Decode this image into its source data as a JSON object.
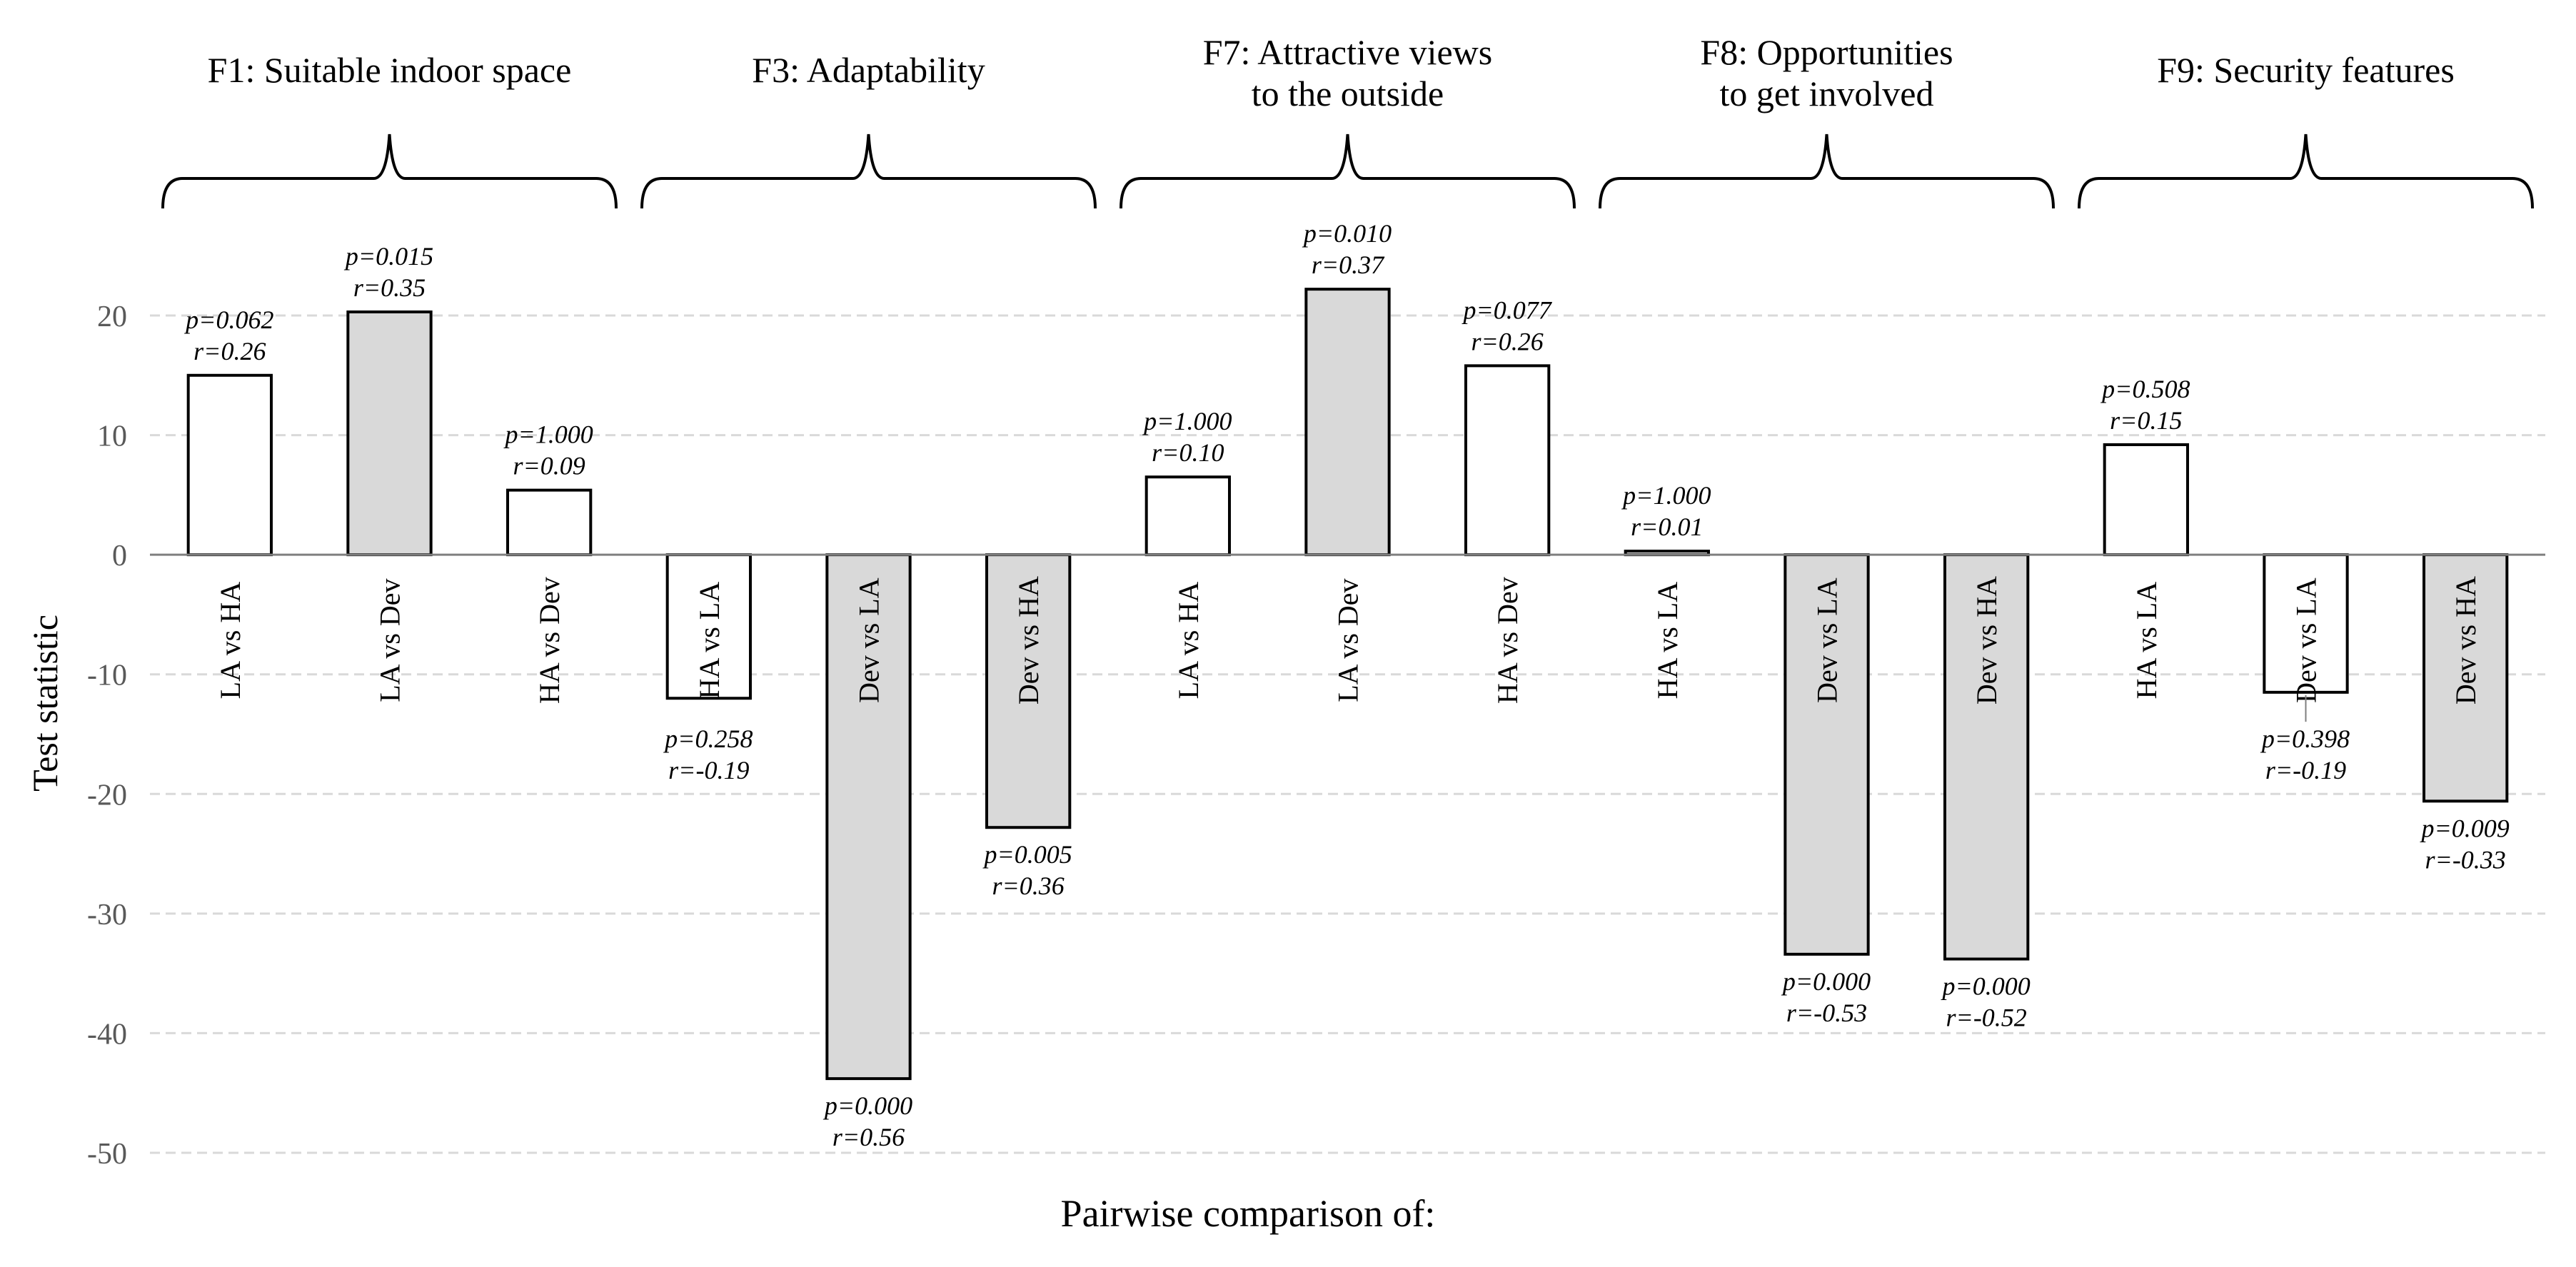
{
  "chart_data": {
    "type": "bar",
    "title": "",
    "xlabel": "Pairwise comparison of:",
    "ylabel": "Test statistic",
    "ylim": [
      -50,
      20
    ],
    "yticks": [
      20,
      10,
      0,
      -10,
      -20,
      -30,
      -40,
      -50
    ],
    "grid": true,
    "legend": "none",
    "colors": {
      "significant": "#d9d9d9",
      "not_significant": "#ffffff",
      "edge": "#000000",
      "grid": "#d9d9d9",
      "axis_text": "#595959"
    },
    "groups": [
      {
        "label": "F1: Suitable indoor space",
        "comparisons": [
          {
            "label": "LA vs HA",
            "value": 15.0,
            "p": "p=0.062",
            "r": "r=0.26",
            "significant": false
          },
          {
            "label": "LA vs Dev",
            "value": 20.3,
            "p": "p=0.015",
            "r": "r=0.35",
            "significant": true
          },
          {
            "label": "HA vs Dev",
            "value": 5.4,
            "p": "p=1.000",
            "r": "r=0.09",
            "significant": false
          }
        ]
      },
      {
        "label": "F3: Adaptability",
        "comparisons": [
          {
            "label": "HA vs LA",
            "value": -12.0,
            "p": "p=0.258",
            "r": "r=-0.19",
            "significant": false
          },
          {
            "label": "Dev vs LA",
            "value": -43.8,
            "p": "p=0.000",
            "r": "r=0.56",
            "significant": true
          },
          {
            "label": "Dev vs HA",
            "value": -22.8,
            "p": "p=0.005",
            "r": "r=0.36",
            "significant": true
          }
        ]
      },
      {
        "label": "F7: Attractive views to the outside",
        "comparisons": [
          {
            "label": "LA vs HA",
            "value": 6.5,
            "p": "p=1.000",
            "r": "r=0.10",
            "significant": false
          },
          {
            "label": "LA vs Dev",
            "value": 22.2,
            "p": "p=0.010",
            "r": "r=0.37",
            "significant": true
          },
          {
            "label": "HA vs Dev",
            "value": 15.8,
            "p": "p=0.077",
            "r": "r=0.26",
            "significant": false
          }
        ]
      },
      {
        "label": "F8: Opportunities to get involved",
        "comparisons": [
          {
            "label": "HA vs LA",
            "value": 0.3,
            "p": "p=1.000",
            "r": "r=0.01",
            "significant": false
          },
          {
            "label": "Dev vs LA",
            "value": -33.4,
            "p": "p=0.000",
            "r": "r=-0.53",
            "significant": true
          },
          {
            "label": "Dev vs HA",
            "value": -33.8,
            "p": "p=0.000",
            "r": "r=-0.52",
            "significant": true
          }
        ]
      },
      {
        "label": "F9: Security features",
        "comparisons": [
          {
            "label": "HA vs LA",
            "value": 9.2,
            "p": "p=0.508",
            "r": "r=0.15",
            "significant": false
          },
          {
            "label": "Dev vs LA",
            "value": -11.5,
            "p": "p=0.398",
            "r": "r=-0.19",
            "significant": false
          },
          {
            "label": "Dev vs HA",
            "value": -20.6,
            "p": "p=0.009",
            "r": "r=-0.33",
            "significant": true
          }
        ]
      }
    ]
  }
}
